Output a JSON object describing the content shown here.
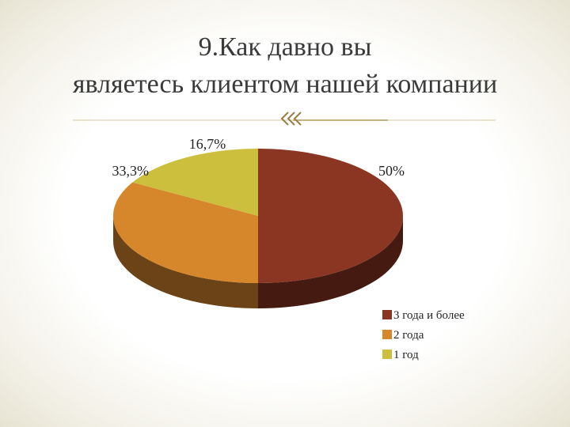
{
  "chart_data": {
    "type": "pie",
    "title": "9.Как давно вы являетесь клиентом нашей компании",
    "categories": [
      "3 года и более",
      "2 года",
      "1 год"
    ],
    "values": [
      50,
      33.3,
      16.7
    ],
    "value_labels": [
      "50%",
      "33,3%",
      "16,7%"
    ],
    "colors": [
      "#8a3622",
      "#d6862b",
      "#cdbf3e"
    ],
    "legend": "right-bottom"
  }
}
